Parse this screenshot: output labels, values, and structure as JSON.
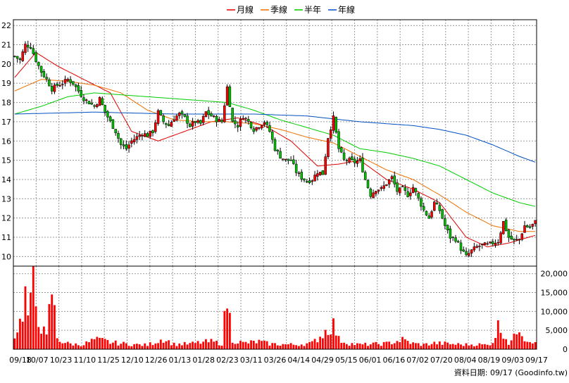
{
  "chart_data": [
    {
      "type": "candlestick",
      "title": "",
      "legend": {
        "placement": "top-center",
        "entries": [
          {
            "name": "月線",
            "color": "#e00000"
          },
          {
            "name": "季線",
            "color": "#f07000"
          },
          {
            "name": "半年",
            "color": "#00cc00"
          },
          {
            "name": "年線",
            "color": "#0050c0"
          }
        ]
      },
      "y_axis": {
        "position": "left",
        "ylim": [
          9.5,
          22.3
        ],
        "ticks": [
          "10",
          "11",
          "12",
          "13",
          "14",
          "15",
          "16",
          "17",
          "18",
          "19",
          "20",
          "21",
          "22"
        ]
      },
      "grid": true,
      "up_color": "#ff0000",
      "down_color": "#00c000",
      "close_anchors": [
        [
          0,
          20.4
        ],
        [
          2,
          20.2
        ],
        [
          4,
          21.0
        ],
        [
          6,
          20.9
        ],
        [
          8,
          20.2
        ],
        [
          10,
          19.6
        ],
        [
          12,
          19.2
        ],
        [
          14,
          18.7
        ],
        [
          16,
          18.9
        ],
        [
          18,
          19.0
        ],
        [
          20,
          19.2
        ],
        [
          22,
          19.0
        ],
        [
          24,
          18.6
        ],
        [
          26,
          18.2
        ],
        [
          28,
          18.0
        ],
        [
          30,
          17.8
        ],
        [
          32,
          18.2
        ],
        [
          34,
          17.5
        ],
        [
          36,
          17.0
        ],
        [
          38,
          16.5
        ],
        [
          40,
          15.8
        ],
        [
          42,
          15.6
        ],
        [
          44,
          16.0
        ],
        [
          46,
          16.2
        ],
        [
          48,
          16.4
        ],
        [
          50,
          16.3
        ],
        [
          52,
          16.5
        ],
        [
          54,
          17.5
        ],
        [
          56,
          17.0
        ],
        [
          58,
          16.8
        ],
        [
          60,
          17.2
        ],
        [
          62,
          17.4
        ],
        [
          64,
          17.2
        ],
        [
          66,
          16.8
        ],
        [
          68,
          17.0
        ],
        [
          70,
          16.9
        ],
        [
          72,
          17.5
        ],
        [
          74,
          17.3
        ],
        [
          76,
          17.1
        ],
        [
          78,
          17.0
        ],
        [
          80,
          18.8
        ],
        [
          82,
          17.0
        ],
        [
          84,
          16.8
        ],
        [
          86,
          17.3
        ],
        [
          88,
          17.0
        ],
        [
          90,
          16.6
        ],
        [
          92,
          16.8
        ],
        [
          94,
          17.0
        ],
        [
          96,
          16.5
        ],
        [
          98,
          15.6
        ],
        [
          100,
          15.2
        ],
        [
          102,
          15.0
        ],
        [
          104,
          15.0
        ],
        [
          106,
          14.4
        ],
        [
          108,
          14.1
        ],
        [
          110,
          13.9
        ],
        [
          112,
          14.0
        ],
        [
          114,
          14.4
        ],
        [
          116,
          14.3
        ],
        [
          118,
          16.2
        ],
        [
          120,
          17.2
        ],
        [
          122,
          15.6
        ],
        [
          124,
          15.0
        ],
        [
          126,
          15.0
        ],
        [
          128,
          14.9
        ],
        [
          130,
          15.0
        ],
        [
          132,
          14.0
        ],
        [
          134,
          13.2
        ],
        [
          136,
          13.5
        ],
        [
          138,
          13.5
        ],
        [
          140,
          13.8
        ],
        [
          142,
          14.1
        ],
        [
          144,
          13.4
        ],
        [
          146,
          13.5
        ],
        [
          148,
          13.2
        ],
        [
          150,
          13.6
        ],
        [
          152,
          13.0
        ],
        [
          154,
          12.4
        ],
        [
          156,
          12.0
        ],
        [
          158,
          12.8
        ],
        [
          160,
          12.4
        ],
        [
          162,
          11.6
        ],
        [
          164,
          11.0
        ],
        [
          166,
          10.9
        ],
        [
          168,
          10.4
        ],
        [
          170,
          10.0
        ],
        [
          172,
          10.3
        ],
        [
          174,
          10.5
        ],
        [
          176,
          10.6
        ],
        [
          178,
          10.6
        ],
        [
          180,
          10.7
        ],
        [
          182,
          10.8
        ],
        [
          184,
          11.8
        ],
        [
          186,
          11.0
        ],
        [
          188,
          10.8
        ],
        [
          190,
          10.9
        ],
        [
          192,
          11.6
        ],
        [
          194,
          11.5
        ],
        [
          196,
          11.8
        ]
      ],
      "ma_series": [
        {
          "name": "月線",
          "color": "#e00000",
          "values": [
            [
              0,
              19.3
            ],
            [
              8,
              20.6
            ],
            [
              16,
              19.9
            ],
            [
              26,
              19.2
            ],
            [
              36,
              18.5
            ],
            [
              44,
              16.5
            ],
            [
              54,
              16.0
            ],
            [
              64,
              16.5
            ],
            [
              74,
              17.0
            ],
            [
              84,
              17.2
            ],
            [
              94,
              16.8
            ],
            [
              104,
              16.0
            ],
            [
              114,
              14.7
            ],
            [
              122,
              14.8
            ],
            [
              130,
              15.0
            ],
            [
              140,
              14.0
            ],
            [
              150,
              13.5
            ],
            [
              160,
              12.8
            ],
            [
              170,
              11.0
            ],
            [
              178,
              10.5
            ],
            [
              186,
              10.7
            ],
            [
              196,
              11.1
            ]
          ]
        },
        {
          "name": "季線",
          "color": "#f07000",
          "values": [
            [
              0,
              18.6
            ],
            [
              10,
              19.2
            ],
            [
              20,
              19.1
            ],
            [
              30,
              18.9
            ],
            [
              40,
              18.5
            ],
            [
              50,
              17.6
            ],
            [
              60,
              17.1
            ],
            [
              70,
              17.0
            ],
            [
              80,
              17.0
            ],
            [
              90,
              16.9
            ],
            [
              100,
              16.6
            ],
            [
              110,
              16.2
            ],
            [
              120,
              15.9
            ],
            [
              130,
              15.2
            ],
            [
              140,
              14.5
            ],
            [
              150,
              14.0
            ],
            [
              160,
              13.2
            ],
            [
              170,
              12.3
            ],
            [
              180,
              11.6
            ],
            [
              190,
              11.3
            ],
            [
              196,
              11.3
            ]
          ]
        },
        {
          "name": "半年",
          "color": "#00cc00",
          "values": [
            [
              0,
              17.4
            ],
            [
              10,
              17.8
            ],
            [
              20,
              18.3
            ],
            [
              30,
              18.5
            ],
            [
              40,
              18.4
            ],
            [
              50,
              18.3
            ],
            [
              60,
              18.2
            ],
            [
              70,
              18.1
            ],
            [
              80,
              18.0
            ],
            [
              90,
              17.6
            ],
            [
              100,
              17.1
            ],
            [
              110,
              16.7
            ],
            [
              120,
              16.3
            ],
            [
              130,
              15.6
            ],
            [
              140,
              15.4
            ],
            [
              150,
              15.1
            ],
            [
              160,
              14.7
            ],
            [
              170,
              14.0
            ],
            [
              180,
              13.3
            ],
            [
              190,
              12.8
            ],
            [
              196,
              12.6
            ]
          ]
        },
        {
          "name": "年線",
          "color": "#0050c0",
          "values": [
            [
              0,
              17.4
            ],
            [
              30,
              17.5
            ],
            [
              60,
              17.4
            ],
            [
              90,
              17.4
            ],
            [
              110,
              17.3
            ],
            [
              130,
              17.0
            ],
            [
              150,
              16.8
            ],
            [
              160,
              16.6
            ],
            [
              170,
              16.3
            ],
            [
              180,
              15.8
            ],
            [
              190,
              15.2
            ],
            [
              196,
              14.9
            ]
          ]
        }
      ]
    },
    {
      "type": "bar",
      "title": "",
      "y_axis": {
        "position": "right",
        "ylim": [
          0,
          22000
        ],
        "ticks": [
          "0",
          "5,000",
          "10,000",
          "15,000",
          "20,000"
        ]
      },
      "grid": true,
      "bar_color": "#ff0000",
      "volume_anchors": [
        [
          0,
          4000
        ],
        [
          2,
          7000
        ],
        [
          4,
          14000
        ],
        [
          5,
          9000
        ],
        [
          6,
          11000
        ],
        [
          7,
          20000
        ],
        [
          8,
          12000
        ],
        [
          10,
          6000
        ],
        [
          12,
          3000
        ],
        [
          14,
          16000
        ],
        [
          16,
          3000
        ],
        [
          18,
          2000
        ],
        [
          20,
          1500
        ],
        [
          24,
          1200
        ],
        [
          26,
          1300
        ],
        [
          30,
          2500
        ],
        [
          34,
          2200
        ],
        [
          36,
          1800
        ],
        [
          40,
          1500
        ],
        [
          46,
          1200
        ],
        [
          50,
          1100
        ],
        [
          56,
          2800
        ],
        [
          60,
          1300
        ],
        [
          66,
          1400
        ],
        [
          70,
          1800
        ],
        [
          74,
          2000
        ],
        [
          78,
          1500
        ],
        [
          80,
          13500
        ],
        [
          82,
          2500
        ],
        [
          86,
          1600
        ],
        [
          92,
          2000
        ],
        [
          96,
          1400
        ],
        [
          100,
          1300
        ],
        [
          106,
          1200
        ],
        [
          112,
          1600
        ],
        [
          116,
          4000
        ],
        [
          118,
          5500
        ],
        [
          120,
          6500
        ],
        [
          122,
          2600
        ],
        [
          126,
          1500
        ],
        [
          130,
          1200
        ],
        [
          134,
          1300
        ],
        [
          140,
          1500
        ],
        [
          146,
          2500
        ],
        [
          150,
          1500
        ],
        [
          154,
          1200
        ],
        [
          158,
          1600
        ],
        [
          162,
          1500
        ],
        [
          166,
          1300
        ],
        [
          170,
          1200
        ],
        [
          174,
          1300
        ],
        [
          178,
          1100
        ],
        [
          180,
          2000
        ],
        [
          182,
          6000
        ],
        [
          184,
          4500
        ],
        [
          186,
          1600
        ],
        [
          188,
          3000
        ],
        [
          190,
          6500
        ],
        [
          192,
          3000
        ],
        [
          194,
          2200
        ],
        [
          196,
          2500
        ]
      ]
    }
  ],
  "x_axis": {
    "ticks": [
      "09/18",
      "10/07",
      "10/23",
      "11/10",
      "11/25",
      "12/10",
      "12/26",
      "01/13",
      "01/28",
      "02/23",
      "03/11",
      "03/26",
      "04/14",
      "04/29",
      "05/15",
      "06/01",
      "06/16",
      "07/02",
      "07/20",
      "08/04",
      "08/19",
      "09/03",
      "09/17"
    ]
  },
  "footer": {
    "source_label": "資料日期: 09/17  (Goodinfo.tw)"
  }
}
